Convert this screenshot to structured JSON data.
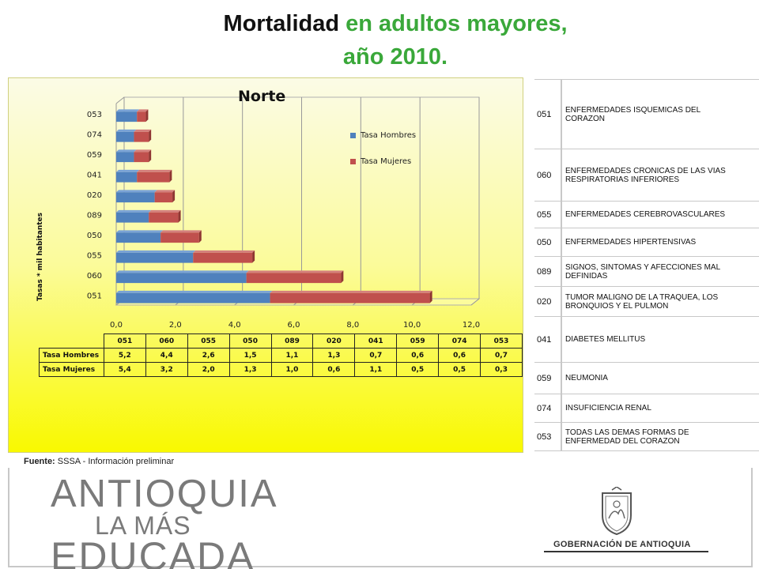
{
  "title": {
    "part1": "Mortalidad",
    "part2": "en adultos mayores,",
    "line2": "año 2010."
  },
  "colors": {
    "title_green": "#3aa83a",
    "hombres": "#4f81bd",
    "mujeres": "#c0504d",
    "panel_top": "#fbfbe6",
    "panel_bottom": "#f9f900"
  },
  "chart_data": {
    "type": "bar",
    "orientation": "horizontal",
    "stacked": true,
    "title": "Norte",
    "ylabel": "Tasas * mil habitantes",
    "xlabel": "",
    "xlim": [
      0,
      12
    ],
    "x_ticks": [
      "0,0",
      "2,0",
      "4,0",
      "6,0",
      "8,0",
      "10,0",
      "12,0"
    ],
    "categories": [
      "051",
      "060",
      "055",
      "050",
      "089",
      "020",
      "041",
      "059",
      "074",
      "053"
    ],
    "series": [
      {
        "name": "Tasa Hombres",
        "values": [
          5.2,
          4.4,
          2.6,
          1.5,
          1.1,
          1.3,
          0.7,
          0.6,
          0.6,
          0.7
        ],
        "labels": [
          "5,2",
          "4,4",
          "2,6",
          "1,5",
          "1,1",
          "1,3",
          "0,7",
          "0,6",
          "0,6",
          "0,7"
        ]
      },
      {
        "name": "Tasa Mujeres",
        "values": [
          5.4,
          3.2,
          2.0,
          1.3,
          1.0,
          0.6,
          1.1,
          0.5,
          0.5,
          0.3
        ],
        "labels": [
          "5,4",
          "3,2",
          "2,0",
          "1,3",
          "1,0",
          "0,6",
          "1,1",
          "0,5",
          "0,5",
          "0,3"
        ]
      }
    ],
    "legend_position": "right",
    "grid": true
  },
  "codes": [
    {
      "code": "051",
      "desc": "ENFERMEDADES ISQUEMICAS DEL CORAZON"
    },
    {
      "code": "060",
      "desc": "ENFERMEDADES CRONICAS DE LAS VIAS RESPIRATORIAS INFERIORES"
    },
    {
      "code": "055",
      "desc": "ENFERMEDADES CEREBROVASCULARES"
    },
    {
      "code": "050",
      "desc": "ENFERMEDADES HIPERTENSIVAS"
    },
    {
      "code": "089",
      "desc": "SIGNOS, SINTOMAS Y AFECCIONES MAL DEFINIDAS"
    },
    {
      "code": "020",
      "desc": "TUMOR MALIGNO DE LA TRAQUEA, LOS BRONQUIOS Y EL PULMON"
    },
    {
      "code": "041",
      "desc": "DIABETES MELLITUS"
    },
    {
      "code": "059",
      "desc": "NEUMONIA"
    },
    {
      "code": "074",
      "desc": "INSUFICIENCIA RENAL"
    },
    {
      "code": "053",
      "desc": "TODAS LAS DEMAS FORMAS DE ENFERMEDAD DEL CORAZON"
    }
  ],
  "source": {
    "label": "Fuente:",
    "text": "SSSA - Información preliminar"
  },
  "logo": {
    "line1": "ANTIOQUIA",
    "line2": "LA MÁS",
    "line3": "EDUCADA"
  },
  "gov_label": "GOBERNACIÓN DE ANTIOQUIA"
}
